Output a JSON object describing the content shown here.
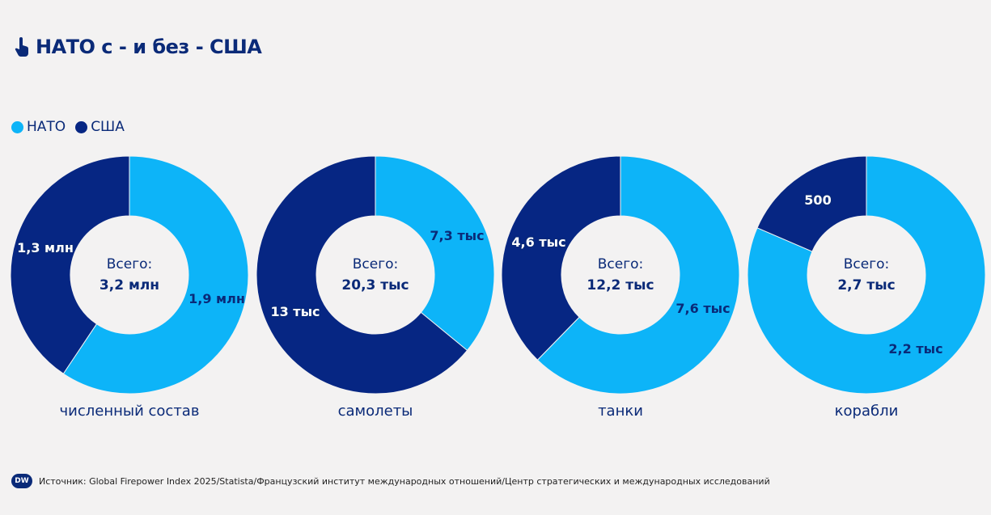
{
  "title": "НАТО с - и без - США",
  "legend": [
    {
      "label": "НАТО",
      "color": "#0db4f8"
    },
    {
      "label": "США",
      "color": "#062683"
    }
  ],
  "chart_data": [
    {
      "type": "pie",
      "category": "численный состав",
      "total_label": "Всего:",
      "total": "3,2 млн",
      "slices": [
        {
          "series": "НАТО",
          "value": 1.9,
          "label": "1,9 млн"
        },
        {
          "series": "США",
          "value": 1.3,
          "label": "1,3 млн"
        }
      ]
    },
    {
      "type": "pie",
      "category": "самолеты",
      "total_label": "Всего:",
      "total": "20,3 тыс",
      "slices": [
        {
          "series": "НАТО",
          "value": 7.3,
          "label": "7,3 тыс"
        },
        {
          "series": "США",
          "value": 13,
          "label": "13 тыс"
        }
      ]
    },
    {
      "type": "pie",
      "category": "танки",
      "total_label": "Всего:",
      "total": "12,2 тыс",
      "slices": [
        {
          "series": "НАТО",
          "value": 7.6,
          "label": "7,6 тыс"
        },
        {
          "series": "США",
          "value": 4.6,
          "label": "4,6 тыс"
        }
      ]
    },
    {
      "type": "pie",
      "category": "корабли",
      "total_label": "Всего:",
      "total": "2,7 тыс",
      "slices": [
        {
          "series": "НАТО",
          "value": 2.2,
          "label": "2,2 тыс"
        },
        {
          "series": "США",
          "value": 0.5,
          "label": "500"
        }
      ]
    }
  ],
  "footer": {
    "logo": "DW",
    "source": "Источник: Global Firepower Index 2025/Statista/Французский институт международных отношений/Центр стратегических и международных исследований"
  }
}
